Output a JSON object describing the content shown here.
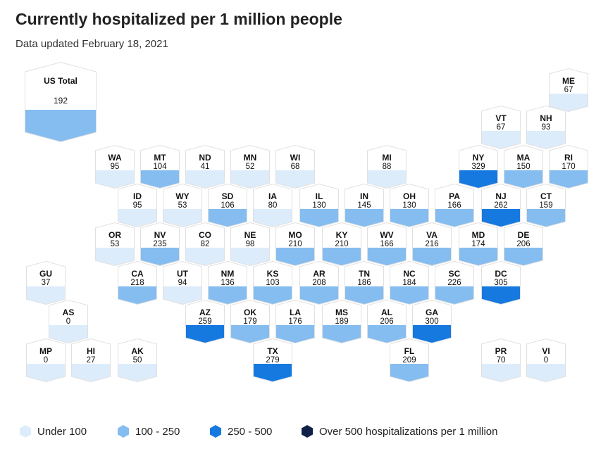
{
  "header": {
    "title": "Currently hospitalized per 1 million people",
    "subtitle": "Data updated February 18, 2021"
  },
  "us_total": {
    "label": "US Total",
    "value": "192",
    "category": "100-250"
  },
  "colors": {
    "under_100": "#dcecfb",
    "100_250": "#85bdf0",
    "250_500": "#1579e0",
    "over_500": "#0f2147"
  },
  "states": [
    {
      "abbr": "ME",
      "value": "67"
    },
    {
      "abbr": "VT",
      "value": "67"
    },
    {
      "abbr": "NH",
      "value": "93"
    },
    {
      "abbr": "WA",
      "value": "95"
    },
    {
      "abbr": "MT",
      "value": "104"
    },
    {
      "abbr": "ND",
      "value": "41"
    },
    {
      "abbr": "MN",
      "value": "52"
    },
    {
      "abbr": "WI",
      "value": "68"
    },
    {
      "abbr": "MI",
      "value": "88"
    },
    {
      "abbr": "NY",
      "value": "329"
    },
    {
      "abbr": "MA",
      "value": "150"
    },
    {
      "abbr": "RI",
      "value": "170"
    },
    {
      "abbr": "ID",
      "value": "95"
    },
    {
      "abbr": "WY",
      "value": "53"
    },
    {
      "abbr": "SD",
      "value": "106"
    },
    {
      "abbr": "IA",
      "value": "80"
    },
    {
      "abbr": "IL",
      "value": "130"
    },
    {
      "abbr": "IN",
      "value": "145"
    },
    {
      "abbr": "OH",
      "value": "130"
    },
    {
      "abbr": "PA",
      "value": "166"
    },
    {
      "abbr": "NJ",
      "value": "262"
    },
    {
      "abbr": "CT",
      "value": "159"
    },
    {
      "abbr": "OR",
      "value": "53"
    },
    {
      "abbr": "NV",
      "value": "235"
    },
    {
      "abbr": "CO",
      "value": "82"
    },
    {
      "abbr": "NE",
      "value": "98"
    },
    {
      "abbr": "MO",
      "value": "210"
    },
    {
      "abbr": "KY",
      "value": "210"
    },
    {
      "abbr": "WV",
      "value": "166"
    },
    {
      "abbr": "VA",
      "value": "216"
    },
    {
      "abbr": "MD",
      "value": "174"
    },
    {
      "abbr": "DE",
      "value": "206"
    },
    {
      "abbr": "GU",
      "value": "37"
    },
    {
      "abbr": "CA",
      "value": "218"
    },
    {
      "abbr": "UT",
      "value": "94"
    },
    {
      "abbr": "NM",
      "value": "136"
    },
    {
      "abbr": "KS",
      "value": "103"
    },
    {
      "abbr": "AR",
      "value": "208"
    },
    {
      "abbr": "TN",
      "value": "186"
    },
    {
      "abbr": "NC",
      "value": "184"
    },
    {
      "abbr": "SC",
      "value": "226"
    },
    {
      "abbr": "DC",
      "value": "305"
    },
    {
      "abbr": "AS",
      "value": "0"
    },
    {
      "abbr": "AZ",
      "value": "259"
    },
    {
      "abbr": "OK",
      "value": "179"
    },
    {
      "abbr": "LA",
      "value": "176"
    },
    {
      "abbr": "MS",
      "value": "189"
    },
    {
      "abbr": "AL",
      "value": "206"
    },
    {
      "abbr": "GA",
      "value": "300"
    },
    {
      "abbr": "MP",
      "value": "0"
    },
    {
      "abbr": "HI",
      "value": "27"
    },
    {
      "abbr": "AK",
      "value": "50"
    },
    {
      "abbr": "TX",
      "value": "279"
    },
    {
      "abbr": "FL",
      "value": "209"
    },
    {
      "abbr": "PR",
      "value": "70"
    },
    {
      "abbr": "VI",
      "value": "0"
    }
  ],
  "legend": [
    {
      "label": "Under 100",
      "color": "#dcecfb"
    },
    {
      "label": "100 - 250",
      "color": "#85bdf0"
    },
    {
      "label": "250 - 500",
      "color": "#1579e0"
    },
    {
      "label": "Over 500 hospitalizations per 1 million",
      "color": "#0f2147"
    }
  ]
}
